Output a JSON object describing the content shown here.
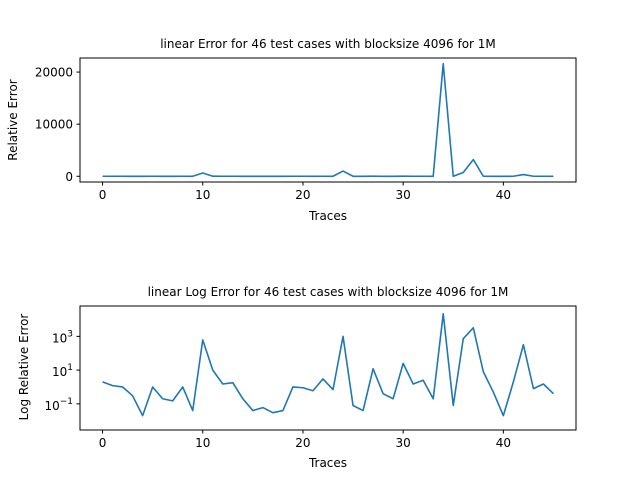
{
  "chart_data": [
    {
      "type": "line",
      "title": "linear Error for 46 test cases with blocksize 4096 for 1M",
      "xlabel": "Traces",
      "ylabel": "Relative Error",
      "yscale": "linear",
      "xlim": [
        -2.25,
        47.25
      ],
      "ylim": [
        -1100,
        22700
      ],
      "xticks": [
        0,
        10,
        20,
        30,
        40
      ],
      "yticks": [
        0,
        10000,
        20000
      ],
      "ytick_labels": [
        "0",
        "10000",
        "20000"
      ],
      "grid": false,
      "series": [
        {
          "x": [
            0,
            1,
            2,
            3,
            4,
            5,
            6,
            7,
            8,
            9,
            10,
            11,
            12,
            13,
            14,
            15,
            16,
            17,
            18,
            19,
            20,
            21,
            22,
            23,
            24,
            25,
            26,
            27,
            28,
            29,
            30,
            31,
            32,
            33,
            34,
            35,
            36,
            37,
            38,
            39,
            40,
            41,
            42,
            43,
            44,
            45
          ],
          "values": [
            2,
            1.2,
            1,
            0.3,
            0.02,
            1,
            0.2,
            0.15,
            1,
            0.04,
            620,
            10,
            1.5,
            1.8,
            0.2,
            0.04,
            0.06,
            0.03,
            0.04,
            1,
            0.9,
            0.6,
            3,
            0.7,
            1000,
            0.08,
            0.04,
            12,
            0.4,
            0.2,
            25,
            1.5,
            2.5,
            0.2,
            21600,
            0.08,
            730,
            3200,
            8,
            0.5,
            0.02,
            2,
            320,
            0.8,
            1.5,
            0.4
          ]
        }
      ]
    },
    {
      "type": "line",
      "title": "linear Log Error for 46 test cases with blocksize 4096 for 1M",
      "xlabel": "Traces",
      "ylabel": "Log Relative Error",
      "yscale": "log",
      "xlim": [
        -2.25,
        47.25
      ],
      "ylim_log10": [
        -2.55,
        4.8
      ],
      "xticks": [
        0,
        10,
        20,
        30,
        40
      ],
      "yticks_log10": [
        -1,
        1,
        3
      ],
      "ytick_labels": [
        "10",
        "10",
        "10"
      ],
      "ytick_exponents": [
        "−1",
        "1",
        "3"
      ],
      "grid": false,
      "series": [
        {
          "x": [
            0,
            1,
            2,
            3,
            4,
            5,
            6,
            7,
            8,
            9,
            10,
            11,
            12,
            13,
            14,
            15,
            16,
            17,
            18,
            19,
            20,
            21,
            22,
            23,
            24,
            25,
            26,
            27,
            28,
            29,
            30,
            31,
            32,
            33,
            34,
            35,
            36,
            37,
            38,
            39,
            40,
            41,
            42,
            43,
            44,
            45
          ],
          "values": [
            2,
            1.2,
            1,
            0.3,
            0.02,
            1,
            0.2,
            0.15,
            1,
            0.04,
            620,
            10,
            1.5,
            1.8,
            0.2,
            0.04,
            0.06,
            0.03,
            0.04,
            1,
            0.9,
            0.6,
            3,
            0.7,
            1000,
            0.08,
            0.04,
            12,
            0.4,
            0.2,
            25,
            1.5,
            2.5,
            0.2,
            21600,
            0.08,
            730,
            3200,
            8,
            0.5,
            0.02,
            2,
            320,
            0.8,
            1.5,
            0.4
          ]
        }
      ]
    }
  ]
}
